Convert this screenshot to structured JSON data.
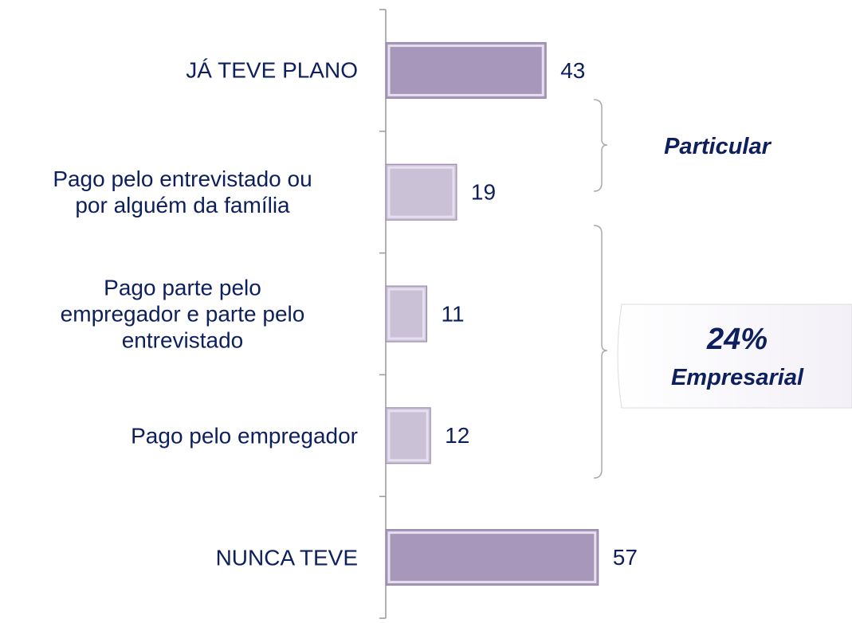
{
  "chart_data": {
    "type": "bar",
    "orientation": "horizontal",
    "categories": [
      "JÁ TEVE PLANO",
      "Pago pelo entrevistado ou\npor alguém da família",
      "Pago parte pelo\nempregador e parte pelo\nentrevistado",
      "Pago pelo empregador",
      "NUNCA TEVE"
    ],
    "values": [
      43,
      19,
      11,
      12,
      57
    ],
    "colors": [
      "#a797ba",
      "#cbc1d7",
      "#cbc1d7",
      "#cbc1d7",
      "#a797ba"
    ],
    "annotations": {
      "particular": "Particular",
      "empresarial_pct": "24%",
      "empresarial": "Empresarial"
    }
  }
}
